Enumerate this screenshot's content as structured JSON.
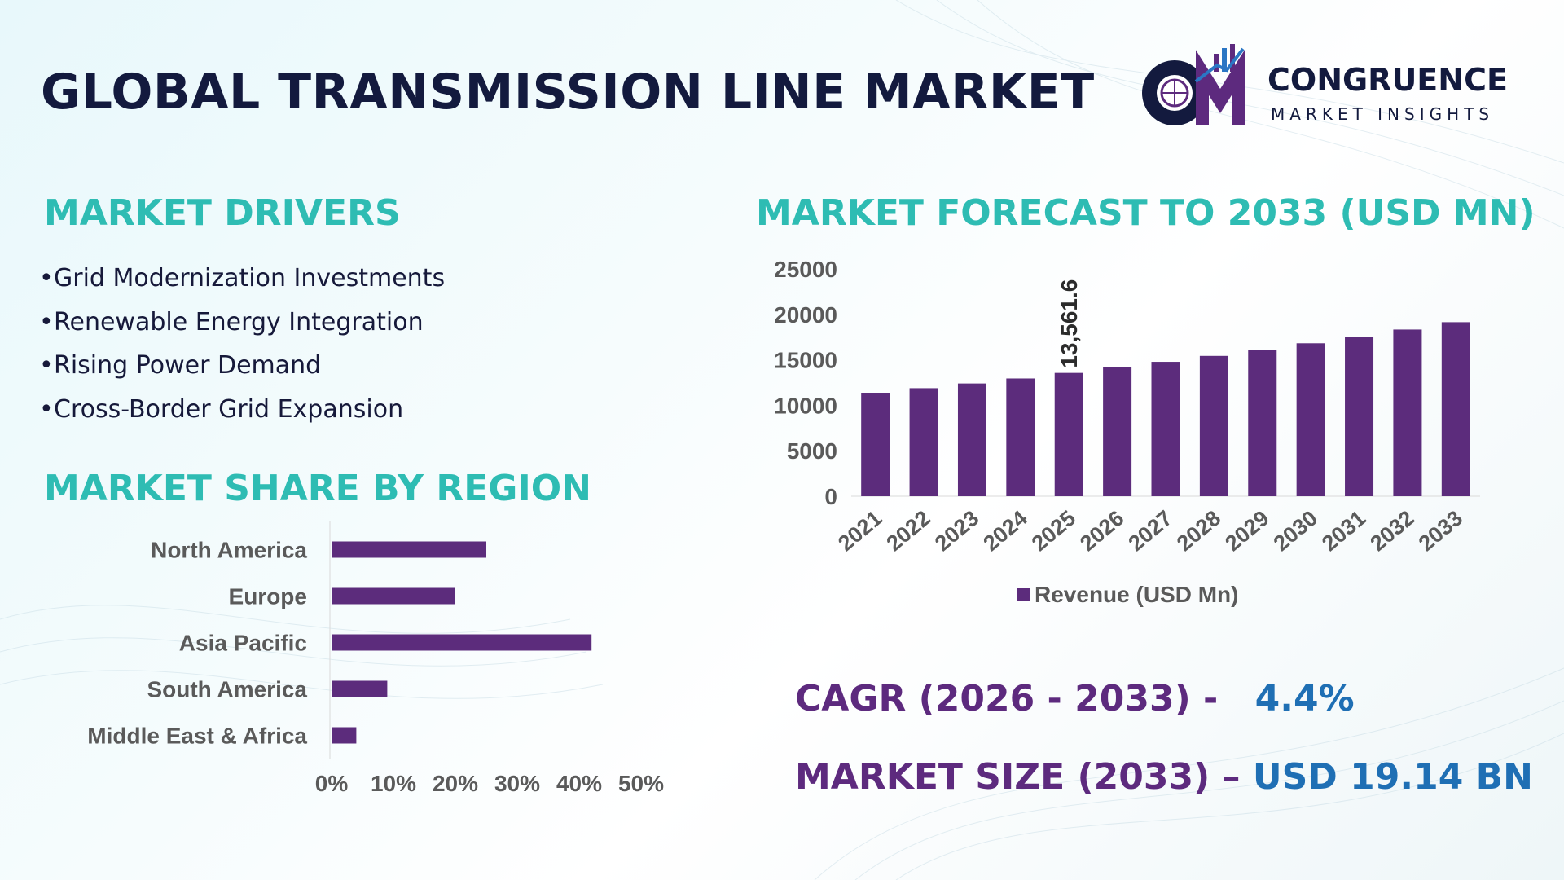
{
  "title": "GLOBAL TRANSMISSION LINE MARKET",
  "logo": {
    "name": "CONGRUENCE",
    "subtitle": "MARKET INSIGHTS",
    "mark": "CM"
  },
  "drivers": {
    "heading": "MARKET DRIVERS",
    "items": [
      "Grid Modernization Investments",
      "Renewable Energy Integration",
      "Rising Power Demand",
      "Cross-Border Grid Expansion"
    ]
  },
  "regions": {
    "heading": "MARKET SHARE BY REGION"
  },
  "forecast": {
    "heading": "MARKET FORECAST TO 2033 (USD MN)"
  },
  "kpis": {
    "cagr_label": "CAGR (2026 - 2033) -",
    "cagr_value": "4.4%",
    "size_label": "MARKET SIZE (2033) –",
    "size_value": "USD 19.14 BN"
  },
  "colors": {
    "bar": "#5c2c7c",
    "heading": "#2ebcb3",
    "title": "#131a3e",
    "kpi_label": "#5d2a7e",
    "kpi_value": "#1f6fb4"
  },
  "chart_data": [
    {
      "type": "bar",
      "orientation": "horizontal",
      "categories": [
        "North America",
        "Europe",
        "Asia Pacific",
        "South America",
        "Middle East & Africa"
      ],
      "values": [
        25,
        20,
        42,
        9,
        4
      ],
      "xlim": [
        0,
        50
      ],
      "xticks": [
        "0%",
        "10%",
        "20%",
        "30%",
        "40%",
        "50%"
      ]
    },
    {
      "type": "bar",
      "categories": [
        "2021",
        "2022",
        "2023",
        "2024",
        "2025",
        "2026",
        "2027",
        "2028",
        "2029",
        "2030",
        "2031",
        "2032",
        "2033"
      ],
      "series": [
        {
          "name": "Revenue (USD Mn)",
          "values": [
            11380,
            11880,
            12400,
            12950,
            13561.6,
            14160,
            14780,
            15430,
            16110,
            16820,
            17560,
            18330,
            19140
          ]
        }
      ],
      "ylim": [
        0,
        25000
      ],
      "yticks": [
        0,
        5000,
        10000,
        15000,
        20000,
        25000
      ],
      "data_labels": [
        {
          "category": "2025",
          "text": "13,561.6"
        }
      ],
      "legend": "bottom"
    }
  ]
}
